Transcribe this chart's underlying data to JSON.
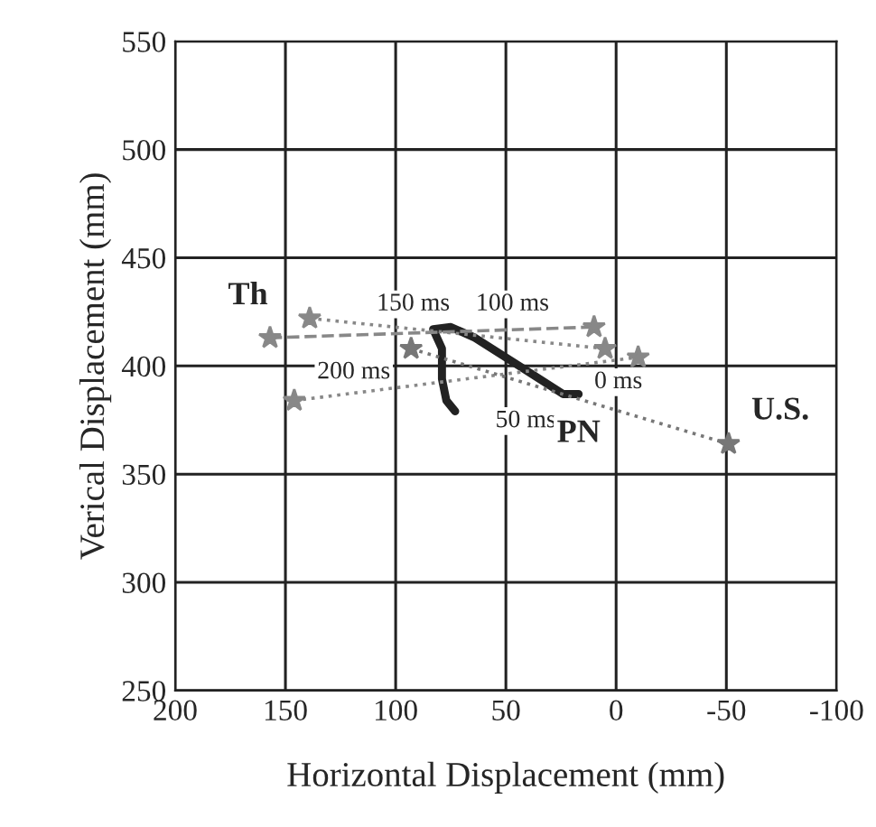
{
  "chart_data": {
    "type": "line",
    "xlabel": "Horizontal Displacement (mm)",
    "ylabel": "Verical Displacement (mm)",
    "xlim": [
      200,
      -100
    ],
    "xticks": [
      200,
      150,
      100,
      50,
      0,
      -50,
      -100
    ],
    "ylim": [
      250,
      550
    ],
    "yticks": [
      250,
      300,
      350,
      400,
      450,
      500,
      550
    ],
    "grid": true,
    "series": [
      {
        "color": "#222222",
        "line_style": "solid",
        "marker": "none",
        "x": [
          17,
          24,
          44,
          64,
          75,
          83,
          79,
          79,
          77,
          73
        ],
        "values": [
          387,
          387,
          400,
          413,
          418,
          417,
          408,
          394,
          384,
          379
        ]
      },
      {
        "color": "#888888",
        "line_style": "dashed",
        "marker": "star",
        "x": [
          157,
          10
        ],
        "values": [
          413,
          418
        ]
      },
      {
        "color": "#888888",
        "line_style": "dotted",
        "marker": "star",
        "x": [
          139,
          5
        ],
        "values": [
          422,
          408
        ]
      },
      {
        "color": "#888888",
        "line_style": "dotted",
        "marker": "star",
        "x": [
          146,
          -10
        ],
        "values": [
          384,
          404
        ]
      },
      {
        "color": "#777777",
        "line_style": "dotted",
        "marker": "star",
        "x": [
          93,
          -51
        ],
        "values": [
          408,
          364
        ]
      }
    ],
    "annotations": [
      "0 ms",
      "50 ms",
      "100 ms",
      "150 ms",
      "200 ms",
      "Th",
      "PN",
      "U.S."
    ]
  }
}
